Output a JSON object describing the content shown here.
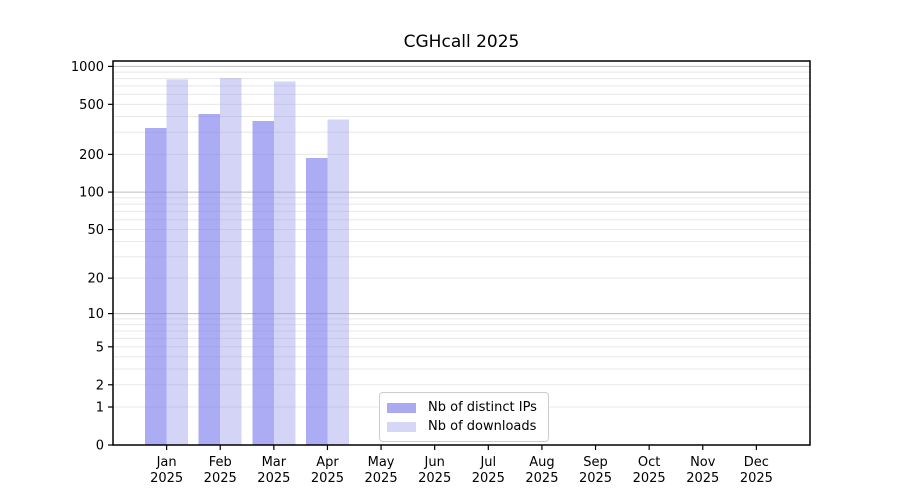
{
  "figure": {
    "background": "#ffffff"
  },
  "chart_data": {
    "type": "bar",
    "title": "CGHcall 2025",
    "xlabel": "",
    "ylabel": "",
    "x_tick_year": "2025",
    "categories": [
      "Jan",
      "Feb",
      "Mar",
      "Apr",
      "May",
      "Jun",
      "Jul",
      "Aug",
      "Sep",
      "Oct",
      "Nov",
      "Dec"
    ],
    "series": [
      {
        "name": "Nb of distinct IPs",
        "color": "rgba(123,123,238,0.63)",
        "legend_color": "#aaaaf0",
        "values": [
          325,
          420,
          367,
          187,
          null,
          null,
          null,
          null,
          null,
          null,
          null,
          null
        ]
      },
      {
        "name": "Nb of downloads",
        "color": "rgba(148,148,232,0.40)",
        "legend_color": "#d6d6f6",
        "values": [
          785,
          810,
          760,
          378,
          null,
          null,
          null,
          null,
          null,
          null,
          null,
          null
        ]
      }
    ],
    "y_scale": "log10(1+x)",
    "ylim": [
      0,
      1000
    ],
    "y_ticks": [
      0,
      1,
      2,
      5,
      10,
      20,
      50,
      100,
      200,
      500,
      1000
    ],
    "grid": "horizontal log major+minor",
    "grid_major_color": "#bdbdbd",
    "grid_minor_color": "#e8e8e8",
    "legend_position": "inside lower-center"
  }
}
